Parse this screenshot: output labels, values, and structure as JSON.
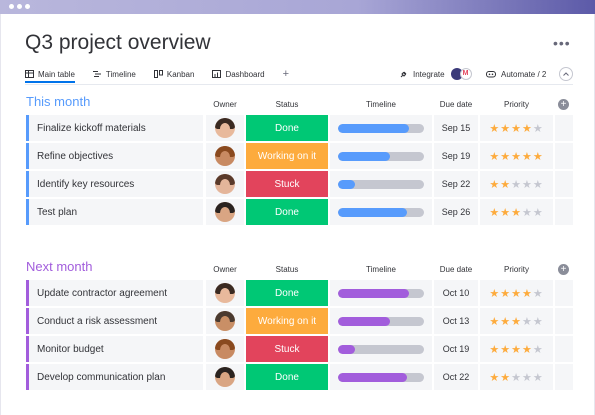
{
  "board": {
    "title": "Q3 project overview"
  },
  "tabs": [
    {
      "label": "Main table",
      "icon": "table-icon"
    },
    {
      "label": "Timeline",
      "icon": "timeline-icon"
    },
    {
      "label": "Kanban",
      "icon": "kanban-icon"
    },
    {
      "label": "Dashboard",
      "icon": "dashboard-icon"
    }
  ],
  "add_view": "+",
  "toolbar": {
    "integrate_label": "Integrate",
    "automate_label": "Automate / 2",
    "more_label": "•••"
  },
  "columns": {
    "owner": "Owner",
    "status": "Status",
    "timeline": "Timeline",
    "due": "Due date",
    "priority": "Priority"
  },
  "colors": {
    "done": "#00c875",
    "working": "#fdab3d",
    "stuck": "#e2445c",
    "this_month": "#579bfc",
    "next_month": "#a25ddc",
    "timeline_blue": "#579bfc",
    "timeline_purple": "#a25ddc"
  },
  "groups": [
    {
      "title": "This month",
      "color": "#579bfc",
      "items": [
        {
          "name": "Finalize kickoff materials",
          "status": "Done",
          "status_color": "#00c875",
          "timeline_progress": 0.82,
          "due": "Sep 15",
          "priority": 4,
          "owner": {
            "hair": "#3a2a22",
            "skin": "#e8b99c"
          }
        },
        {
          "name": "Refine objectives",
          "status": "Working on it",
          "status_color": "#fdab3d",
          "timeline_progress": 0.6,
          "due": "Sep 19",
          "priority": 5,
          "owner": {
            "hair": "#8a4a1f",
            "skin": "#c88a62"
          }
        },
        {
          "name": "Identify key resources",
          "status": "Stuck",
          "status_color": "#e2445c",
          "timeline_progress": 0.2,
          "due": "Sep 22",
          "priority": 2,
          "owner": {
            "hair": "#5a3a2a",
            "skin": "#e4b59a"
          }
        },
        {
          "name": "Test plan",
          "status": "Done",
          "status_color": "#00c875",
          "timeline_progress": 0.8,
          "due": "Sep 26",
          "priority": 3,
          "owner": {
            "hair": "#2a2320",
            "skin": "#d9a583"
          }
        }
      ]
    },
    {
      "title": "Next month",
      "color": "#a25ddc",
      "items": [
        {
          "name": "Update contractor agreement",
          "status": "Done",
          "status_color": "#00c875",
          "timeline_progress": 0.82,
          "due": "Oct 10",
          "priority": 4,
          "owner": {
            "hair": "#3a2a22",
            "skin": "#e8b99c"
          }
        },
        {
          "name": "Conduct a risk assessment",
          "status": "Working on it",
          "status_color": "#fdab3d",
          "timeline_progress": 0.6,
          "due": "Oct 13",
          "priority": 3,
          "owner": {
            "hair": "#4a3a30",
            "skin": "#c98f66"
          }
        },
        {
          "name": "Monitor budget",
          "status": "Stuck",
          "status_color": "#e2445c",
          "timeline_progress": 0.2,
          "due": "Oct 19",
          "priority": 4,
          "owner": {
            "hair": "#8a4a1f",
            "skin": "#c88a62"
          }
        },
        {
          "name": "Develop communication plan",
          "status": "Done",
          "status_color": "#00c875",
          "timeline_progress": 0.8,
          "due": "Oct 22",
          "priority": 2,
          "owner": {
            "hair": "#2a2320",
            "skin": "#d9a583"
          }
        }
      ]
    }
  ]
}
